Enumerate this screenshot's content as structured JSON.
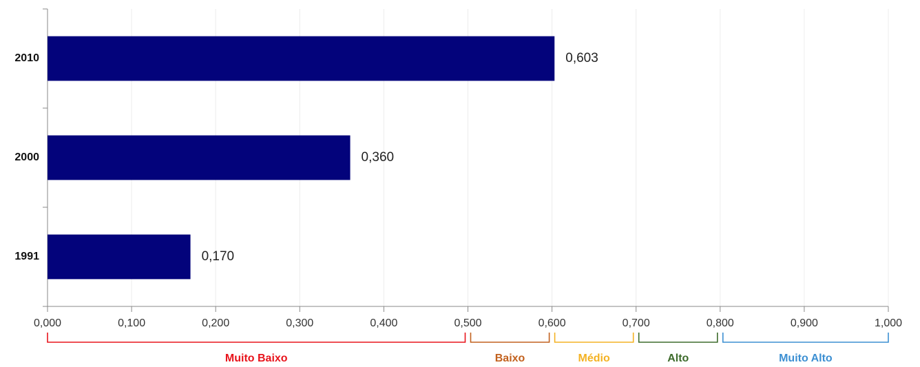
{
  "chart_data": {
    "type": "hbar",
    "categories": [
      "2010",
      "2000",
      "1991"
    ],
    "values": [
      0.603,
      0.36,
      0.17
    ],
    "value_labels": [
      "0,603",
      "0,360",
      "0,170"
    ],
    "color": "#03037b",
    "xlim": [
      0,
      1
    ],
    "xticks": [
      {
        "value": 0,
        "label": "0,000"
      },
      {
        "value": 0.1,
        "label": "0,100"
      },
      {
        "value": 0.2,
        "label": "0,200"
      },
      {
        "value": 0.3,
        "label": "0,300"
      },
      {
        "value": 0.4,
        "label": "0,400"
      },
      {
        "value": 0.5,
        "label": "0,500"
      },
      {
        "value": 0.6,
        "label": "0,600"
      },
      {
        "value": 0.7,
        "label": "0,700"
      },
      {
        "value": 0.8,
        "label": "0,800"
      },
      {
        "value": 0.9,
        "label": "0,900"
      },
      {
        "value": 1,
        "label": "1,000"
      }
    ],
    "grid": true,
    "bands": [
      {
        "label": "Muito Baixo",
        "from": 0,
        "to": 0.5,
        "color": "#e8141c"
      },
      {
        "label": "Baixo",
        "from": 0.5,
        "to": 0.6,
        "color": "#c2611e"
      },
      {
        "label": "Médio",
        "from": 0.6,
        "to": 0.7,
        "color": "#f4b223"
      },
      {
        "label": "Alto",
        "from": 0.7,
        "to": 0.8,
        "color": "#3d6b2b"
      },
      {
        "label": "Muito Alto",
        "from": 0.8,
        "to": 1,
        "color": "#3c8fd2"
      }
    ]
  }
}
